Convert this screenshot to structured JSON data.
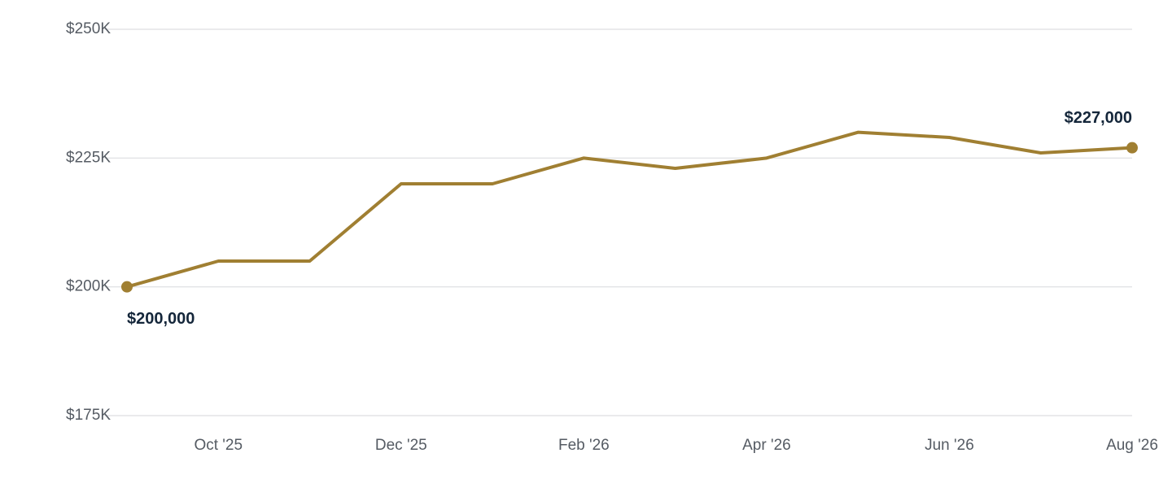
{
  "chart_data": {
    "type": "line",
    "categories": [
      null,
      "Oct '25",
      null,
      "Dec '25",
      null,
      "Feb '26",
      null,
      "Apr '26",
      null,
      "Jun '26",
      null,
      "Aug '26"
    ],
    "series": [
      {
        "color": "#a07f32",
        "values": [
          200000,
          205000,
          205000,
          220000,
          220000,
          225000,
          223000,
          225000,
          230000,
          229000,
          226000,
          227000
        ],
        "value_labels": [
          "$200,000",
          null,
          null,
          null,
          null,
          null,
          null,
          null,
          null,
          null,
          null,
          "$227,000"
        ]
      }
    ],
    "ylim": [
      175000,
      250000
    ],
    "yticks": [
      {
        "value": 175000,
        "label": "$175K"
      },
      {
        "value": 200000,
        "label": "$200K"
      },
      {
        "value": 225000,
        "label": "$225K"
      },
      {
        "value": 250000,
        "label": "$250K"
      }
    ],
    "grid": true
  }
}
